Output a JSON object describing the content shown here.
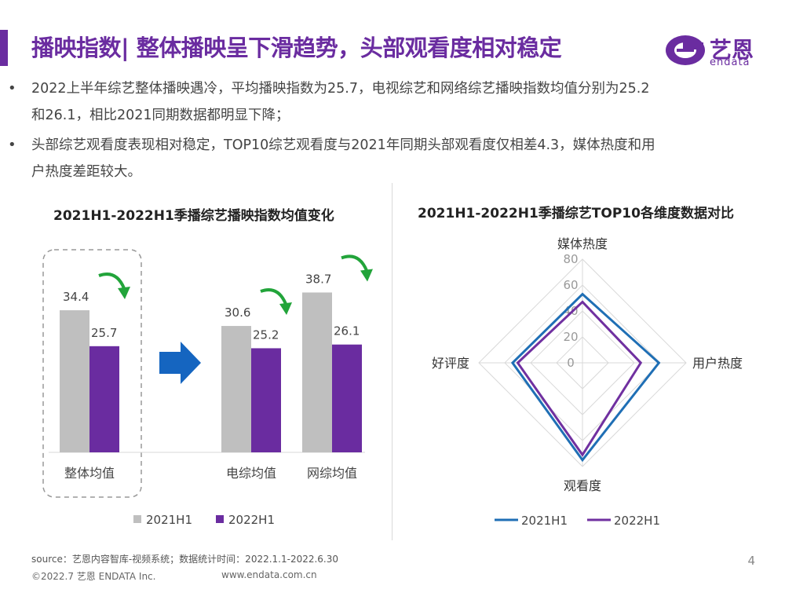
{
  "header": {
    "title": "播映指数| 整体播映呈下滑趋势，头部观看度相对稳定",
    "logo_text": "艺恩",
    "logo_sub": "endata"
  },
  "bullets": [
    {
      "marker": "•",
      "lines": [
        "2022上半年综艺整体播映遇冷，平均播映指数为25.7，电视综艺和网络综艺播映指数均值分别为25.2",
        "和26.1，相比2021同期数据都明显下降；"
      ]
    },
    {
      "marker": "•",
      "lines": [
        "头部综艺观看度表现相对稳定，TOP10综艺观看度与2021年同期头部观看度仅相差4.3，媒体热度和用",
        "户热度差距较大。"
      ]
    }
  ],
  "chart_data": [
    {
      "type": "bar",
      "title": "2021H1-2022H1季播综艺播映指数均值变化",
      "categories": [
        "整体均值",
        "电综均值",
        "网综均值"
      ],
      "series": [
        {
          "name": "2021H1",
          "values": [
            34.4,
            30.6,
            38.7
          ],
          "color": "#bfbfbf"
        },
        {
          "name": "2022H1",
          "values": [
            25.7,
            25.2,
            26.1
          ],
          "color": "#6a2ca0"
        }
      ],
      "legend": "bottom"
    },
    {
      "type": "radar",
      "title": "2021H1-2022H1季播综艺TOP10各维度数据对比",
      "axes": [
        "媒体热度",
        "用户热度",
        "观看度",
        "好评度"
      ],
      "ticks": [
        "0",
        "20",
        "40",
        "60",
        "80"
      ],
      "rmax": 80,
      "series": [
        {
          "name": "2021H1",
          "values": [
            53,
            59,
            75,
            54
          ],
          "color": "#1f6fb5"
        },
        {
          "name": "2022H1",
          "values": [
            47,
            45,
            71,
            50
          ],
          "color": "#7030a0"
        }
      ],
      "legend": "bottom"
    }
  ],
  "footer": {
    "source": "source：艺恩内容智库-视频系统；数据统计时间：2022.1.1-2022.6.30",
    "copyright": "©2022.7 艺恩 ENDATA Inc.",
    "website": "www.endata.com.cn",
    "page": "4"
  },
  "colors": {
    "brand": "#6a2ca0",
    "arrow_blue": "#1565c0",
    "arrow_green": "#22a43a"
  }
}
